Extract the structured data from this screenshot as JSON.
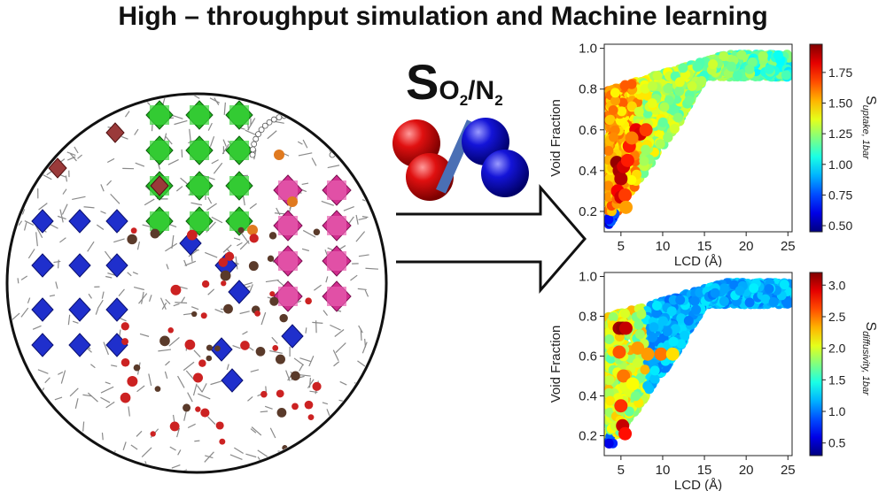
{
  "title": "High – throughput simulation and Machine learning",
  "selectivity": {
    "symbol": "S",
    "numerator": "O",
    "numerator_sub": "2",
    "separator": "/",
    "denominator": "N",
    "denominator_sub": "2"
  },
  "colors": {
    "o2_molecule": "#dd1111",
    "n2_molecule": "#1515cc",
    "slash": "#4a6fb5"
  },
  "chart_data": [
    {
      "type": "scatter",
      "xlabel": "LCD (Å)",
      "ylabel": "Void Fraction",
      "xticks": [
        "5",
        "10",
        "15",
        "20",
        "25"
      ],
      "yticks": [
        "0.2",
        "0.4",
        "0.6",
        "0.8",
        "1.0"
      ],
      "xlim": [
        3,
        25.5
      ],
      "ylim": [
        0.1,
        1.02
      ],
      "colorbar": {
        "label": "S_uptake, 1bar",
        "range": [
          0.45,
          1.98
        ],
        "ticks": [
          "0.50",
          "0.75",
          "1.00",
          "1.25",
          "1.50",
          "1.75"
        ]
      },
      "highlights": [
        {
          "x": 4.5,
          "y": 0.44,
          "c": 1.95
        },
        {
          "x": 4.8,
          "y": 0.4,
          "c": 1.92
        },
        {
          "x": 5.0,
          "y": 0.36,
          "c": 1.9
        },
        {
          "x": 5.3,
          "y": 0.42,
          "c": 1.85
        },
        {
          "x": 4.6,
          "y": 0.3,
          "c": 1.8
        },
        {
          "x": 5.0,
          "y": 0.27,
          "c": 1.85
        },
        {
          "x": 5.5,
          "y": 0.28,
          "c": 1.7
        },
        {
          "x": 5.8,
          "y": 0.45,
          "c": 1.75
        },
        {
          "x": 6.0,
          "y": 0.52,
          "c": 1.75
        },
        {
          "x": 6.8,
          "y": 0.6,
          "c": 1.82
        },
        {
          "x": 7.3,
          "y": 0.58,
          "c": 1.85
        },
        {
          "x": 8.0,
          "y": 0.6,
          "c": 1.7
        },
        {
          "x": 6.3,
          "y": 0.56,
          "c": 1.6
        },
        {
          "x": 5.6,
          "y": 0.22,
          "c": 1.55
        }
      ]
    },
    {
      "type": "scatter",
      "xlabel": "LCD (Å)",
      "ylabel": "Void Fraction",
      "xticks": [
        "5",
        "10",
        "15",
        "20",
        "25"
      ],
      "yticks": [
        "0.2",
        "0.4",
        "0.6",
        "0.8",
        "1.0"
      ],
      "xlim": [
        3,
        25.5
      ],
      "ylim": [
        0.1,
        1.02
      ],
      "colorbar": {
        "label": "S_diffusivity, 1bar",
        "range": [
          0.3,
          3.2
        ],
        "ticks": [
          "0.5",
          "1.0",
          "1.5",
          "2.0",
          "2.5",
          "3.0"
        ]
      },
      "highlights": [
        {
          "x": 4.8,
          "y": 0.74,
          "c": 3.1
        },
        {
          "x": 5.2,
          "y": 0.74,
          "c": 3.15
        },
        {
          "x": 5.6,
          "y": 0.74,
          "c": 3.0
        },
        {
          "x": 5.2,
          "y": 0.25,
          "c": 3.0
        },
        {
          "x": 5.5,
          "y": 0.21,
          "c": 2.8
        },
        {
          "x": 5.0,
          "y": 0.35,
          "c": 2.7
        },
        {
          "x": 4.8,
          "y": 0.62,
          "c": 2.6
        },
        {
          "x": 5.3,
          "y": 0.5,
          "c": 2.5
        },
        {
          "x": 7.0,
          "y": 0.64,
          "c": 2.4
        },
        {
          "x": 8.2,
          "y": 0.61,
          "c": 2.4
        },
        {
          "x": 9.8,
          "y": 0.61,
          "c": 2.5
        },
        {
          "x": 11.2,
          "y": 0.61,
          "c": 2.2
        },
        {
          "x": 6.4,
          "y": 0.46,
          "c": 2.1
        }
      ]
    }
  ]
}
